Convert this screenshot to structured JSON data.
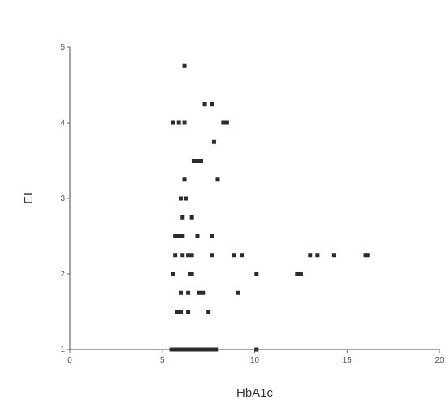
{
  "chart_data": {
    "type": "scatter",
    "title": "",
    "xlabel": "HbA1c",
    "ylabel": "EI",
    "xlim": [
      0,
      20
    ],
    "ylim": [
      1,
      5
    ],
    "x_ticks": [
      0,
      5,
      10,
      15,
      20
    ],
    "y_ticks": [
      1,
      2,
      3,
      4,
      5
    ],
    "x_tick_labels": [
      "0",
      "5",
      "10",
      "15",
      "20"
    ],
    "y_tick_labels": [
      "1",
      "2",
      "3",
      "4",
      "5"
    ],
    "grid": false,
    "marker_color": "#2b2b2b",
    "points": [
      {
        "x": 6.2,
        "y": 4.75
      },
      {
        "x": 7.3,
        "y": 4.25
      },
      {
        "x": 7.7,
        "y": 4.25
      },
      {
        "x": 5.6,
        "y": 4.0
      },
      {
        "x": 5.9,
        "y": 4.0
      },
      {
        "x": 6.2,
        "y": 4.0
      },
      {
        "x": 8.3,
        "y": 4.0
      },
      {
        "x": 8.5,
        "y": 4.0
      },
      {
        "x": 7.8,
        "y": 3.75
      },
      {
        "x": 6.7,
        "y": 3.5
      },
      {
        "x": 6.9,
        "y": 3.5
      },
      {
        "x": 7.1,
        "y": 3.5
      },
      {
        "x": 6.2,
        "y": 3.25
      },
      {
        "x": 8.0,
        "y": 3.25
      },
      {
        "x": 6.0,
        "y": 3.0
      },
      {
        "x": 6.3,
        "y": 3.0
      },
      {
        "x": 6.1,
        "y": 2.75
      },
      {
        "x": 6.6,
        "y": 2.75
      },
      {
        "x": 5.7,
        "y": 2.5
      },
      {
        "x": 5.9,
        "y": 2.5
      },
      {
        "x": 6.1,
        "y": 2.5
      },
      {
        "x": 6.9,
        "y": 2.5
      },
      {
        "x": 7.7,
        "y": 2.5
      },
      {
        "x": 5.7,
        "y": 2.25
      },
      {
        "x": 6.1,
        "y": 2.25
      },
      {
        "x": 6.4,
        "y": 2.25
      },
      {
        "x": 6.6,
        "y": 2.25
      },
      {
        "x": 7.7,
        "y": 2.25
      },
      {
        "x": 8.9,
        "y": 2.25
      },
      {
        "x": 9.3,
        "y": 2.25
      },
      {
        "x": 13.0,
        "y": 2.25
      },
      {
        "x": 13.4,
        "y": 2.25
      },
      {
        "x": 14.3,
        "y": 2.25
      },
      {
        "x": 16.0,
        "y": 2.25
      },
      {
        "x": 16.1,
        "y": 2.25
      },
      {
        "x": 5.6,
        "y": 2.0
      },
      {
        "x": 6.5,
        "y": 2.0
      },
      {
        "x": 6.6,
        "y": 2.0
      },
      {
        "x": 10.1,
        "y": 2.0
      },
      {
        "x": 12.3,
        "y": 2.0
      },
      {
        "x": 12.5,
        "y": 2.0
      },
      {
        "x": 6.0,
        "y": 1.75
      },
      {
        "x": 6.4,
        "y": 1.75
      },
      {
        "x": 7.0,
        "y": 1.75
      },
      {
        "x": 7.2,
        "y": 1.75
      },
      {
        "x": 9.1,
        "y": 1.75
      },
      {
        "x": 5.8,
        "y": 1.5
      },
      {
        "x": 6.0,
        "y": 1.5
      },
      {
        "x": 6.4,
        "y": 1.5
      },
      {
        "x": 7.5,
        "y": 1.5
      },
      {
        "x": 5.5,
        "y": 1.0
      },
      {
        "x": 5.7,
        "y": 1.0
      },
      {
        "x": 5.9,
        "y": 1.0
      },
      {
        "x": 6.1,
        "y": 1.0
      },
      {
        "x": 6.3,
        "y": 1.0
      },
      {
        "x": 6.5,
        "y": 1.0
      },
      {
        "x": 6.7,
        "y": 1.0
      },
      {
        "x": 6.9,
        "y": 1.0
      },
      {
        "x": 7.1,
        "y": 1.0
      },
      {
        "x": 7.3,
        "y": 1.0
      },
      {
        "x": 7.5,
        "y": 1.0
      },
      {
        "x": 7.7,
        "y": 1.0
      },
      {
        "x": 7.9,
        "y": 1.0
      },
      {
        "x": 10.1,
        "y": 1.0
      }
    ]
  }
}
